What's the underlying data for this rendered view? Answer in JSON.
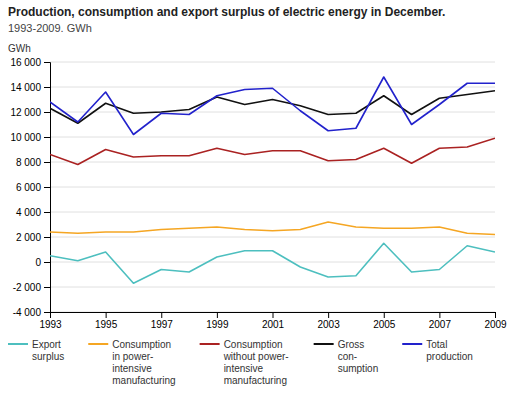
{
  "chart_data": {
    "type": "line",
    "title": "Production, consumption and export surplus of electric energy in December.",
    "subtitle": "1993-2009. GWh",
    "y_label": "GWh",
    "x": [
      1993,
      1994,
      1995,
      1996,
      1997,
      1998,
      1999,
      2000,
      2001,
      2002,
      2003,
      2004,
      2005,
      2006,
      2007,
      2008,
      2009
    ],
    "series": [
      {
        "name": "Export\nsurplus",
        "color": "#4dbfbf",
        "values": [
          500,
          100,
          800,
          -1700,
          -600,
          -800,
          400,
          900,
          900,
          -400,
          -1200,
          -1100,
          1500,
          -800,
          -600,
          1300,
          800
        ]
      },
      {
        "name": "Consumption\nin power-\nintensive\nmanufacturing",
        "color": "#f5a623",
        "values": [
          2400,
          2300,
          2400,
          2400,
          2600,
          2700,
          2800,
          2600,
          2500,
          2600,
          3200,
          2800,
          2700,
          2700,
          2800,
          2300,
          2200
        ]
      },
      {
        "name": "Consumption\nwithout power-\nintensive\nmanufacturing",
        "color": "#aa2222",
        "values": [
          8600,
          7800,
          9000,
          8400,
          8500,
          8500,
          9100,
          8600,
          8900,
          8900,
          8100,
          8200,
          9100,
          7900,
          9100,
          9200,
          9900
        ]
      },
      {
        "name": "Gross\ncon-\nsumption",
        "color": "#111111",
        "values": [
          12300,
          11100,
          12700,
          11900,
          12000,
          12200,
          13200,
          12600,
          13000,
          12500,
          11800,
          11900,
          13300,
          11800,
          13100,
          13400,
          13700
        ]
      },
      {
        "name": "Total\nproduction",
        "color": "#2222cc",
        "values": [
          12800,
          11200,
          13600,
          10200,
          11900,
          11800,
          13300,
          13800,
          13900,
          12100,
          10500,
          10700,
          14800,
          11000,
          12600,
          14300,
          14300
        ]
      }
    ],
    "xlim": [
      1993,
      2009
    ],
    "xticks": [
      1993,
      1995,
      1997,
      1999,
      2001,
      2003,
      2005,
      2007,
      2009
    ],
    "ylim": [
      -4000,
      16000
    ],
    "yticks": [
      {
        "value": -4000,
        "label": "-4 000"
      },
      {
        "value": -2000,
        "label": "-2 000"
      },
      0,
      {
        "value": 2000,
        "label": "2 000"
      },
      {
        "value": 4000,
        "label": "4 000"
      },
      {
        "value": 6000,
        "label": "6 000"
      },
      {
        "value": 8000,
        "label": "8 000"
      },
      {
        "value": 10000,
        "label": "10 000"
      },
      {
        "value": 12000,
        "label": "12 000"
      },
      {
        "value": 14000,
        "label": "14 000"
      },
      {
        "value": 16000,
        "label": "16 000"
      }
    ],
    "grid": true
  }
}
